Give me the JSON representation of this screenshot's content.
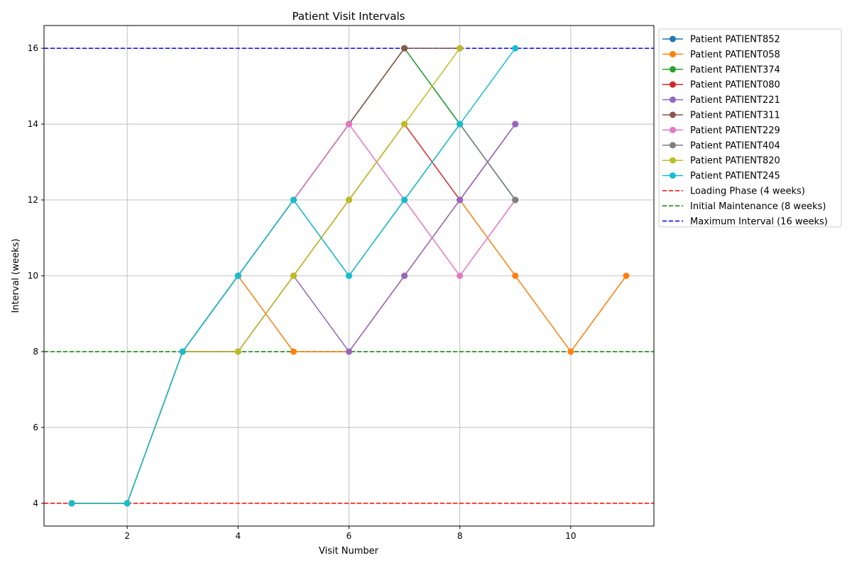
{
  "chart_data": {
    "type": "line",
    "title": "Patient Visit Intervals",
    "xlabel": "Visit Number",
    "ylabel": "Interval (weeks)",
    "xlim": [
      0.5,
      11.5
    ],
    "ylim": [
      3.4,
      16.6
    ],
    "x_ticks": [
      2,
      4,
      6,
      8,
      10
    ],
    "y_ticks": [
      4,
      6,
      8,
      10,
      12,
      14,
      16
    ],
    "grid": true,
    "legend_position": "outside-top-right",
    "series": [
      {
        "name": "Patient PATIENT852",
        "color": "#1f77b4",
        "x": [
          1,
          2,
          3,
          4,
          5,
          6,
          7,
          8,
          9
        ],
        "values": [
          4,
          4,
          8,
          10,
          12,
          14,
          16,
          14,
          12
        ]
      },
      {
        "name": "Patient PATIENT058",
        "color": "#ff7f0e",
        "x": [
          1,
          2,
          3,
          4,
          5,
          6,
          7,
          8,
          9,
          10,
          11
        ],
        "values": [
          4,
          4,
          8,
          10,
          8,
          8,
          10,
          12,
          10,
          8,
          10
        ]
      },
      {
        "name": "Patient PATIENT374",
        "color": "#2ca02c",
        "x": [
          1,
          2,
          3,
          4,
          5,
          6,
          7,
          8,
          9
        ],
        "values": [
          4,
          4,
          8,
          10,
          12,
          14,
          16,
          14,
          12
        ]
      },
      {
        "name": "Patient PATIENT080",
        "color": "#d62728",
        "x": [
          1,
          2,
          3,
          4,
          5,
          6,
          7,
          8,
          9
        ],
        "values": [
          4,
          4,
          8,
          8,
          10,
          12,
          14,
          12,
          14
        ]
      },
      {
        "name": "Patient PATIENT221",
        "color": "#9467bd",
        "x": [
          1,
          2,
          3,
          4,
          5,
          6,
          7,
          8,
          9
        ],
        "values": [
          4,
          4,
          8,
          8,
          10,
          8,
          10,
          12,
          14
        ]
      },
      {
        "name": "Patient PATIENT311",
        "color": "#8c564b",
        "x": [
          1,
          2,
          3,
          4,
          5,
          6,
          7,
          8
        ],
        "values": [
          4,
          4,
          8,
          10,
          12,
          14,
          16,
          16
        ]
      },
      {
        "name": "Patient PATIENT229",
        "color": "#e377c2",
        "x": [
          1,
          2,
          3,
          4,
          5,
          6,
          7,
          8,
          9
        ],
        "values": [
          4,
          4,
          8,
          10,
          12,
          14,
          12,
          10,
          12
        ]
      },
      {
        "name": "Patient PATIENT404",
        "color": "#7f7f7f",
        "x": [
          1,
          2,
          3,
          4,
          5,
          6,
          7,
          8,
          9
        ],
        "values": [
          4,
          4,
          8,
          10,
          12,
          10,
          12,
          14,
          12
        ]
      },
      {
        "name": "Patient PATIENT820",
        "color": "#bcbd22",
        "x": [
          1,
          2,
          3,
          4,
          5,
          6,
          7,
          8
        ],
        "values": [
          4,
          4,
          8,
          8,
          10,
          12,
          14,
          16
        ]
      },
      {
        "name": "Patient PATIENT245",
        "color": "#17becf",
        "x": [
          1,
          2,
          3,
          4,
          5,
          6,
          7,
          8,
          9
        ],
        "values": [
          4,
          4,
          8,
          10,
          12,
          10,
          12,
          14,
          16
        ]
      }
    ],
    "reference_lines": [
      {
        "name": "Loading Phase (4 weeks)",
        "value": 4,
        "color": "#ff0000"
      },
      {
        "name": "Initial Maintenance (8 weeks)",
        "value": 8,
        "color": "#008000"
      },
      {
        "name": "Maximum Interval (16 weeks)",
        "value": 16,
        "color": "#0000ff"
      }
    ]
  }
}
